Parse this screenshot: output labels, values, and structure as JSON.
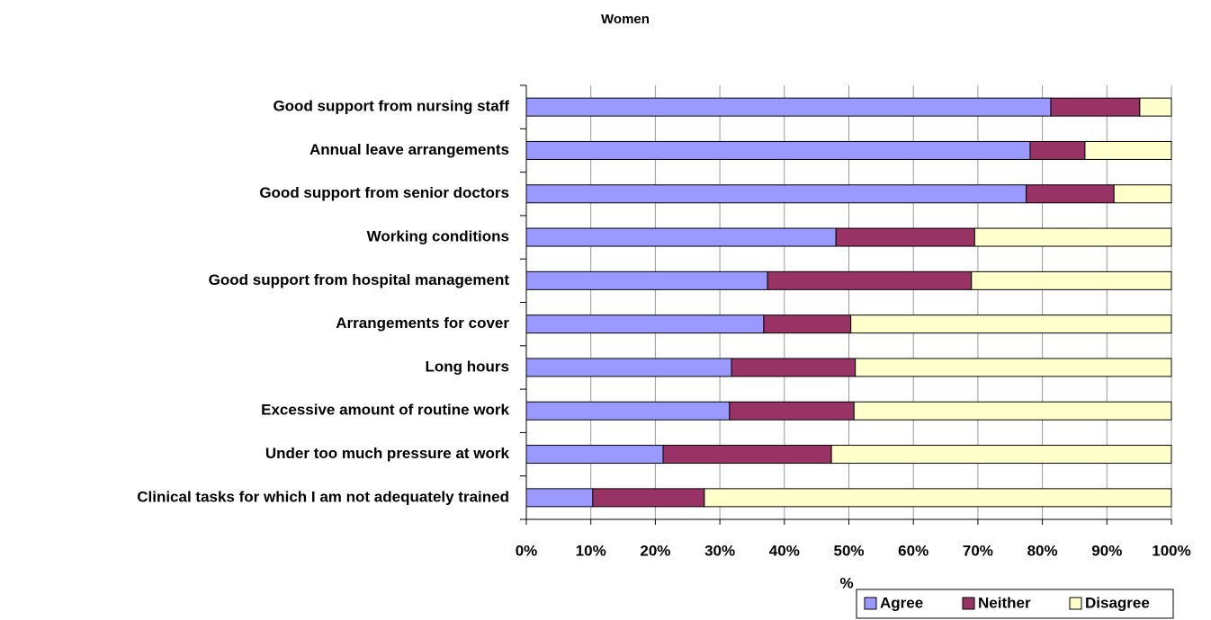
{
  "chart_data": {
    "type": "stacked_barh",
    "title": "Women",
    "xlabel": "%",
    "categories": [
      "Good support from nursing staff",
      "Annual leave arrangements",
      "Good support from senior doctors",
      "Working conditions",
      "Good support from hospital management",
      "Arrangements for cover",
      "Long hours",
      "Excessive amount of routine work",
      "Under too much pressure at work",
      "Clinical tasks for which I am not adequately trained"
    ],
    "series": [
      {
        "name": "Agree",
        "color": "#9999ff",
        "values": [
          81.3,
          78.1,
          77.5,
          48.0,
          37.4,
          36.8,
          31.8,
          31.5,
          21.2,
          10.3
        ]
      },
      {
        "name": "Neither",
        "color": "#993366",
        "values": [
          13.8,
          8.5,
          13.6,
          21.5,
          31.6,
          13.5,
          19.2,
          19.3,
          26.1,
          17.3
        ]
      },
      {
        "name": "Disagree",
        "color": "#ffffcc",
        "values": [
          4.9,
          13.4,
          8.9,
          30.5,
          31.0,
          49.7,
          49.0,
          49.2,
          52.7,
          72.4
        ]
      }
    ],
    "xlim": [
      0,
      100
    ],
    "xticks": [
      {
        "value": 0,
        "label": "0%"
      },
      {
        "value": 10,
        "label": "10%"
      },
      {
        "value": 20,
        "label": "20%"
      },
      {
        "value": 30,
        "label": "30%"
      },
      {
        "value": 40,
        "label": "40%"
      },
      {
        "value": 50,
        "label": "50%"
      },
      {
        "value": 60,
        "label": "60%"
      },
      {
        "value": 70,
        "label": "70%"
      },
      {
        "value": 80,
        "label": "80%"
      },
      {
        "value": 90,
        "label": "90%"
      },
      {
        "value": 100,
        "label": "100%"
      }
    ],
    "grid": true,
    "legend": "bottom-right"
  }
}
